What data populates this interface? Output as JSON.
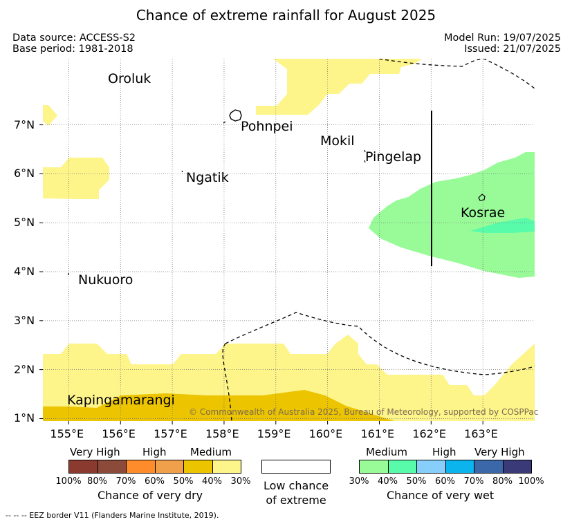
{
  "title": "Chance of extreme rainfall for August 2025",
  "meta": {
    "data_source": "Data source: ACCESS-S2",
    "base_period": "Base period: 1981-2018",
    "model_run": "Model Run: 19/07/2025",
    "issued": "Issued: 21/07/2025"
  },
  "map": {
    "lon_range": [
      154.5,
      164.0
    ],
    "lat_range": [
      0.95,
      8.35
    ],
    "x_ticks": [
      "155°E",
      "156°E",
      "157°E",
      "158°E",
      "159°E",
      "160°E",
      "161°E",
      "162°E",
      "163°E"
    ],
    "y_ticks": [
      "1°N",
      "2°N",
      "3°N",
      "4°N",
      "5°N",
      "6°N",
      "7°N"
    ],
    "places": {
      "oroluk": "Oroluk",
      "pohnpei": "Pohnpei",
      "mokil": "Mokil",
      "pingelap": "Pingelap",
      "ngatik": "Ngatik",
      "kosrae": "Kosrae",
      "nukuoro": "Nukuoro",
      "kapingamarangi": "Kapingamarangi"
    },
    "copyright": "© Commonwealth of Australia 2025, Bureau of Meteorology, supported by COSPPac",
    "grid": true
  },
  "legend": {
    "dry": {
      "headers": {
        "very_high": "Very High",
        "high": "High",
        "medium": "Medium"
      },
      "colors": [
        "#8b3a2f",
        "#8b4a3a",
        "#ff8c2a",
        "#f0a04a",
        "#ecc400",
        "#fdf48a"
      ],
      "ticks": [
        "100%",
        "80%",
        "70%",
        "60%",
        "50%",
        "40%",
        "30%"
      ],
      "caption": "Chance of very dry"
    },
    "neutral": {
      "line1": "Low chance",
      "line2": "of extreme"
    },
    "wet": {
      "headers": {
        "medium": "Medium",
        "high": "High",
        "very_high": "Very High"
      },
      "colors": [
        "#98fb98",
        "#58fbaa",
        "#87cefa",
        "#0bb4ec",
        "#3a68a8",
        "#3a3a78"
      ],
      "ticks": [
        "30%",
        "40%",
        "50%",
        "60%",
        "70%",
        "80%",
        "100%"
      ],
      "caption": "Chance of very wet"
    }
  },
  "footnote": "--  --  -- EEZ border V11 (Flanders Marine Institute, 2019)."
}
